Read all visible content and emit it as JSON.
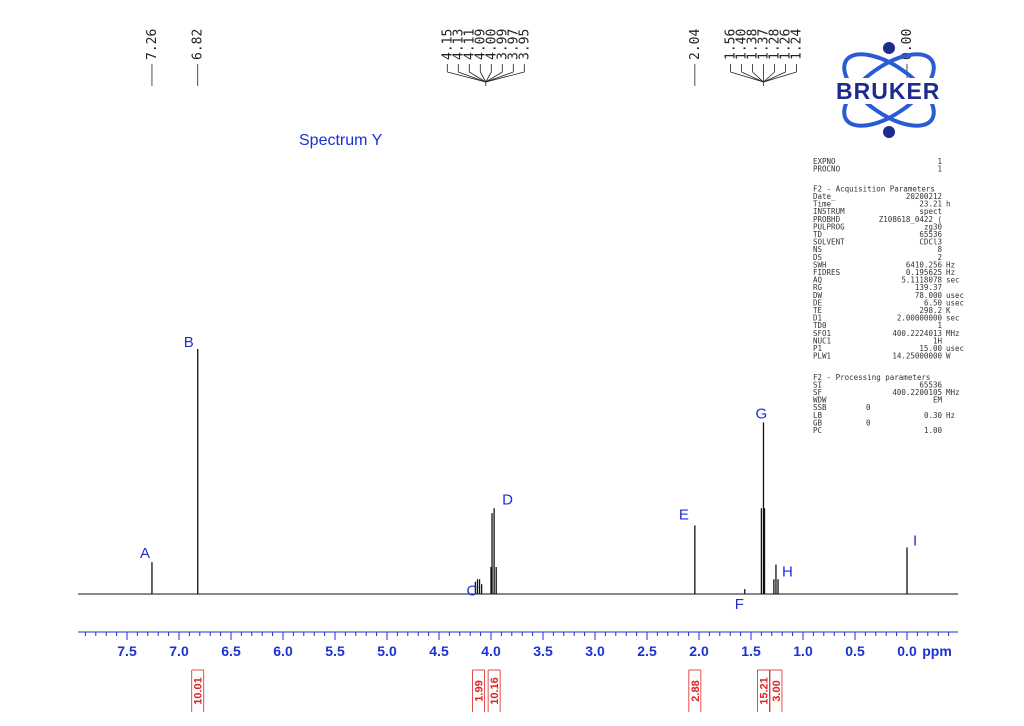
{
  "spectrum": {
    "title": "Spectrum Y",
    "logo_text": "BRUKER",
    "axis_unit": "ppm"
  },
  "chart_data": {
    "type": "line",
    "xlabel": "ppm",
    "xlim": [
      8.0,
      -0.5
    ],
    "x_reversed": true,
    "xticks": [
      "7.5",
      "7.0",
      "6.5",
      "6.0",
      "5.5",
      "5.0",
      "4.5",
      "4.0",
      "3.5",
      "3.0",
      "2.5",
      "2.0",
      "1.5",
      "1.0",
      "0.5",
      "0.0"
    ],
    "peaks": [
      {
        "x": 7.26,
        "height": 0.13
      },
      {
        "x": 6.82,
        "height": 1.0
      },
      {
        "x": 4.15,
        "height": 0.05
      },
      {
        "x": 4.13,
        "height": 0.06
      },
      {
        "x": 4.11,
        "height": 0.06
      },
      {
        "x": 4.09,
        "height": 0.04
      },
      {
        "x": 4.0,
        "height": 0.11
      },
      {
        "x": 3.99,
        "height": 0.33
      },
      {
        "x": 3.97,
        "height": 0.35
      },
      {
        "x": 3.95,
        "height": 0.11
      },
      {
        "x": 2.04,
        "height": 0.28
      },
      {
        "x": 1.56,
        "height": 0.02
      },
      {
        "x": 1.4,
        "height": 0.35
      },
      {
        "x": 1.38,
        "height": 0.7
      },
      {
        "x": 1.37,
        "height": 0.35
      },
      {
        "x": 1.28,
        "height": 0.06
      },
      {
        "x": 1.26,
        "height": 0.12
      },
      {
        "x": 1.24,
        "height": 0.06
      },
      {
        "x": 0.0,
        "height": 0.19
      }
    ],
    "peak_labels": [
      {
        "label": "A",
        "x": 7.26,
        "height": 0.13
      },
      {
        "label": "B",
        "x": 6.82,
        "height": 1.0
      },
      {
        "label": "C",
        "x": 4.12,
        "height": 0.06
      },
      {
        "label": "D",
        "x": 3.97,
        "height": 0.35
      },
      {
        "label": "E",
        "x": 2.04,
        "height": 0.28
      },
      {
        "label": "F",
        "x": 1.56,
        "height": 0.02
      },
      {
        "label": "G",
        "x": 1.38,
        "height": 0.7
      },
      {
        "label": "H",
        "x": 1.26,
        "height": 0.12
      },
      {
        "label": "I",
        "x": 0.0,
        "height": 0.19
      }
    ],
    "shift_groups": [
      {
        "labels": [
          "7.26"
        ],
        "x": 7.26
      },
      {
        "labels": [
          "6.82"
        ],
        "x": 6.82
      },
      {
        "labels": [
          "4.15",
          "4.13",
          "4.11",
          "4.09",
          "4.00",
          "3.99",
          "3.97",
          "3.95"
        ],
        "x": 4.05
      },
      {
        "labels": [
          "2.04"
        ],
        "x": 2.04
      },
      {
        "labels": [
          "1.56",
          "1.40",
          "1.38",
          "1.37",
          "1.28",
          "1.26",
          "1.24"
        ],
        "x": 1.38
      },
      {
        "labels": [
          "0.00"
        ],
        "x": 0.0
      }
    ],
    "integrals": [
      {
        "value": "10.01",
        "x": 6.82
      },
      {
        "value": "1.99",
        "x": 4.12
      },
      {
        "value": "10.16",
        "x": 3.97
      },
      {
        "value": "2.88",
        "x": 2.04
      },
      {
        "value": "15.21",
        "x": 1.38
      },
      {
        "value": "3.00",
        "x": 1.26
      }
    ]
  },
  "parameters": {
    "header": [
      {
        "name": "EXPNO",
        "value": "1",
        "unit": ""
      },
      {
        "name": "PROCNO",
        "value": "1",
        "unit": ""
      }
    ],
    "acquisition_title": "F2 - Acquisition Parameters",
    "acquisition": [
      {
        "name": "Date_",
        "value": "20200212",
        "unit": ""
      },
      {
        "name": "Time",
        "value": "23.21",
        "unit": "h"
      },
      {
        "name": "INSTRUM",
        "value": "spect",
        "unit": ""
      },
      {
        "name": "PROBHD",
        "value": "Z108618_0422 (",
        "unit": ""
      },
      {
        "name": "PULPROG",
        "value": "zg30",
        "unit": ""
      },
      {
        "name": "TD",
        "value": "65536",
        "unit": ""
      },
      {
        "name": "SOLVENT",
        "value": "CDCl3",
        "unit": ""
      },
      {
        "name": "NS",
        "value": "8",
        "unit": ""
      },
      {
        "name": "DS",
        "value": "2",
        "unit": ""
      },
      {
        "name": "SWH",
        "value": "6410.256",
        "unit": "Hz"
      },
      {
        "name": "FIDRES",
        "value": "0.195625",
        "unit": "Hz"
      },
      {
        "name": "AQ",
        "value": "5.1118078",
        "unit": "sec"
      },
      {
        "name": "RG",
        "value": "139.37",
        "unit": ""
      },
      {
        "name": "DW",
        "value": "78.000",
        "unit": "usec"
      },
      {
        "name": "DE",
        "value": "6.50",
        "unit": "usec"
      },
      {
        "name": "TE",
        "value": "298.2",
        "unit": "K"
      },
      {
        "name": "D1",
        "value": "2.00000000",
        "unit": "sec"
      },
      {
        "name": "TD0",
        "value": "1",
        "unit": ""
      },
      {
        "name": "SFO1",
        "value": "400.2224013",
        "unit": "MHz"
      },
      {
        "name": "NUC1",
        "value": "1H",
        "unit": ""
      },
      {
        "name": "P1",
        "value": "15.00",
        "unit": "usec"
      },
      {
        "name": "PLW1",
        "value": "14.25000000",
        "unit": "W"
      }
    ],
    "processing_title": "F2 - Processing parameters",
    "processing": [
      {
        "name": "SI",
        "value": "65536",
        "unit": ""
      },
      {
        "name": "SF",
        "value": "400.2200105",
        "unit": "MHz"
      },
      {
        "name": "WDW",
        "value": "EM",
        "unit": ""
      },
      {
        "name": "SSB",
        "value": "0",
        "unit": "",
        "mid": true
      },
      {
        "name": "LB",
        "value": "0.30",
        "unit": "Hz"
      },
      {
        "name": "GB",
        "value": "0",
        "unit": "",
        "mid": true
      },
      {
        "name": "PC",
        "value": "1.00",
        "unit": ""
      }
    ]
  },
  "colors": {
    "blue": "#1a2fd6",
    "red": "#d22222",
    "spectrum": "#111111",
    "logo": "#1f2b8c"
  }
}
